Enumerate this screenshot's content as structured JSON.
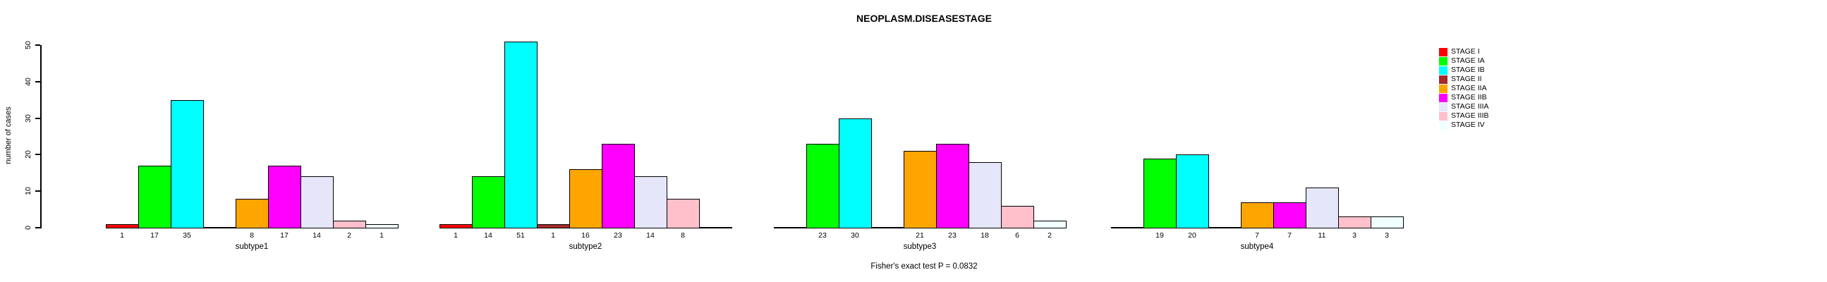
{
  "title": "NEOPLASM.DISEASESTAGE",
  "footer": "Fisher's exact test P = 0.0832",
  "ylabel": "number of cases",
  "legend": {
    "entries": [
      {
        "label": "STAGE I",
        "color": "#FF0000"
      },
      {
        "label": "STAGE IA",
        "color": "#00FF00"
      },
      {
        "label": "STAGE IB",
        "color": "#00FFFF"
      },
      {
        "label": "STAGE II",
        "color": "#A52A2A"
      },
      {
        "label": "STAGE IIA",
        "color": "#FFA500"
      },
      {
        "label": "STAGE IIB",
        "color": "#FF00FF"
      },
      {
        "label": "STAGE IIIA",
        "color": "#E6E6FA"
      },
      {
        "label": "STAGE IIIB",
        "color": "#FFC0CB"
      },
      {
        "label": "STAGE IV",
        "color": "#F0FFFF"
      }
    ]
  },
  "chart_data": {
    "type": "bar",
    "title": "NEOPLASM.DISEASESTAGE",
    "xlabel": "",
    "ylabel": "number of cases",
    "ylim": [
      0,
      50
    ],
    "yticks": [
      0,
      10,
      20,
      30,
      40,
      50
    ],
    "grid": false,
    "legend_position": "right",
    "annotation": "Fisher's exact test P = 0.0832",
    "bar_labels": "value shown under each bar, omitted when value is 0",
    "categories": [
      "subtype1",
      "subtype2",
      "subtype3",
      "subtype4"
    ],
    "series": [
      {
        "name": "STAGE I",
        "color": "#FF0000",
        "values": [
          1,
          1,
          0,
          0
        ]
      },
      {
        "name": "STAGE IA",
        "color": "#00FF00",
        "values": [
          17,
          14,
          23,
          19
        ]
      },
      {
        "name": "STAGE IB",
        "color": "#00FFFF",
        "values": [
          35,
          51,
          30,
          20
        ]
      },
      {
        "name": "STAGE II",
        "color": "#A52A2A",
        "values": [
          0,
          1,
          0,
          0
        ]
      },
      {
        "name": "STAGE IIA",
        "color": "#FFA500",
        "values": [
          8,
          16,
          21,
          7
        ]
      },
      {
        "name": "STAGE IIB",
        "color": "#FF00FF",
        "values": [
          17,
          23,
          23,
          7
        ]
      },
      {
        "name": "STAGE IIIA",
        "color": "#E6E6FA",
        "values": [
          14,
          14,
          18,
          11
        ]
      },
      {
        "name": "STAGE IIIB",
        "color": "#FFC0CB",
        "values": [
          2,
          8,
          6,
          3
        ]
      },
      {
        "name": "STAGE IV",
        "color": "#F0FFFF",
        "values": [
          1,
          0,
          2,
          3
        ]
      }
    ]
  }
}
